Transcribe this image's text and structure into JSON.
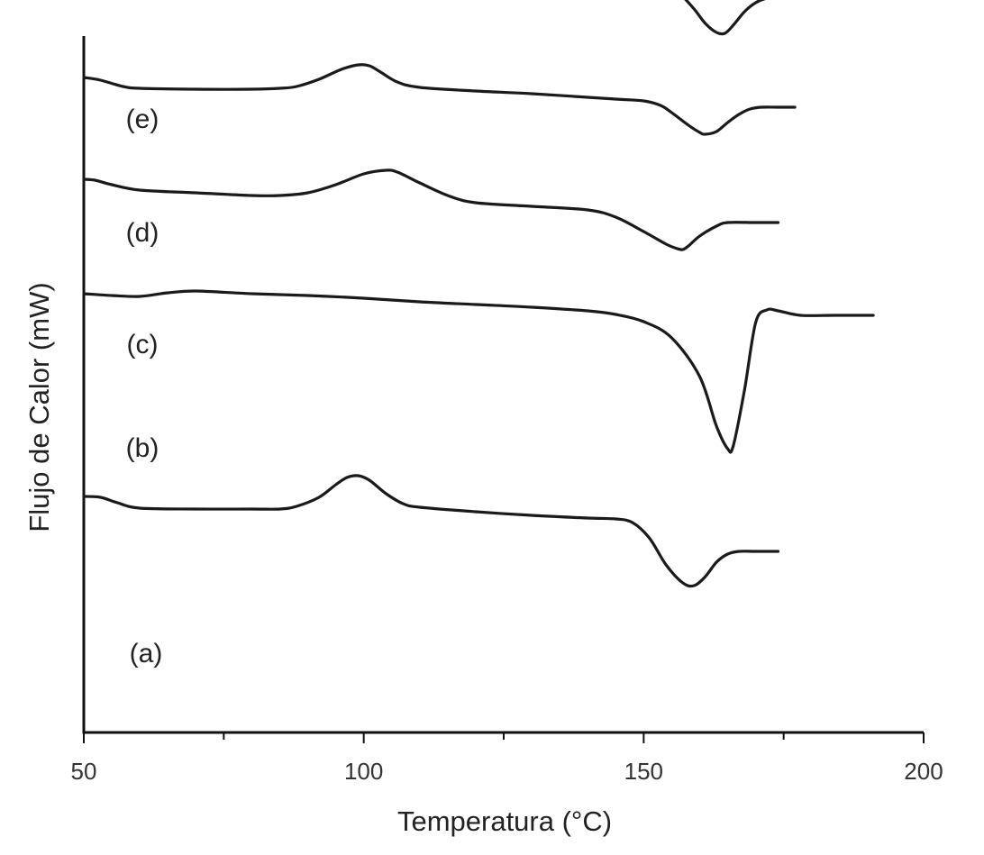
{
  "chart_data": {
    "type": "line",
    "title": "",
    "xlabel": "Temperatura (°C)",
    "ylabel": "Flujo de Calor (mW)",
    "xlim": [
      50,
      200
    ],
    "x_ticks": [
      "50",
      "100",
      "150",
      "200"
    ],
    "y_ticks_shown": false,
    "grid": false,
    "note": "",
    "series": [
      {
        "name": "(e)",
        "points": [
          [
            50,
            8.49
          ],
          [
            52,
            8.5
          ],
          [
            55,
            8.46
          ],
          [
            57,
            8.42
          ],
          [
            60,
            8.4
          ],
          [
            70,
            8.4
          ],
          [
            80,
            8.4
          ],
          [
            87,
            8.4
          ],
          [
            90,
            8.42
          ],
          [
            94,
            8.52
          ],
          [
            97,
            8.61
          ],
          [
            99,
            8.65
          ],
          [
            101,
            8.65
          ],
          [
            103,
            8.6
          ],
          [
            106,
            8.5
          ],
          [
            110,
            8.42
          ],
          [
            115,
            8.39
          ],
          [
            130,
            8.35
          ],
          [
            145,
            8.31
          ],
          [
            150,
            8.31
          ],
          [
            152,
            8.33
          ],
          [
            154,
            8.31
          ],
          [
            156,
            8.23
          ],
          [
            159,
            8.03
          ],
          [
            161,
            7.87
          ],
          [
            163,
            7.77
          ],
          [
            164.5,
            7.76
          ],
          [
            166,
            7.85
          ],
          [
            168,
            8.0
          ],
          [
            170,
            8.1
          ],
          [
            172,
            8.15
          ],
          [
            174,
            8.16
          ],
          [
            177,
            8.16
          ]
        ]
      },
      {
        "name": "(d)",
        "points": [
          [
            50,
            7.27
          ],
          [
            53,
            7.24
          ],
          [
            57,
            7.17
          ],
          [
            60,
            7.15
          ],
          [
            70,
            7.14
          ],
          [
            80,
            7.14
          ],
          [
            85,
            7.15
          ],
          [
            88,
            7.17
          ],
          [
            92,
            7.25
          ],
          [
            96,
            7.36
          ],
          [
            99,
            7.41
          ],
          [
            101,
            7.4
          ],
          [
            103,
            7.33
          ],
          [
            106,
            7.22
          ],
          [
            110,
            7.16
          ],
          [
            120,
            7.12
          ],
          [
            130,
            7.09
          ],
          [
            145,
            7.03
          ],
          [
            150,
            7.01
          ],
          [
            153,
            6.96
          ],
          [
            155,
            6.88
          ],
          [
            158,
            6.74
          ],
          [
            160,
            6.66
          ],
          [
            161,
            6.64
          ],
          [
            163,
            6.67
          ],
          [
            165,
            6.77
          ],
          [
            167,
            6.86
          ],
          [
            169,
            6.92
          ],
          [
            171,
            6.94
          ],
          [
            174,
            6.94
          ],
          [
            177,
            6.94
          ]
        ]
      },
      {
        "name": "(c)",
        "points": [
          [
            50,
            6.14
          ],
          [
            52,
            6.13
          ],
          [
            55,
            6.08
          ],
          [
            60,
            6.02
          ],
          [
            70,
            5.99
          ],
          [
            80,
            5.96
          ],
          [
            85,
            5.96
          ],
          [
            90,
            5.99
          ],
          [
            95,
            6.08
          ],
          [
            100,
            6.2
          ],
          [
            104,
            6.24
          ],
          [
            106,
            6.22
          ],
          [
            110,
            6.1
          ],
          [
            115,
            5.96
          ],
          [
            120,
            5.88
          ],
          [
            130,
            5.84
          ],
          [
            140,
            5.8
          ],
          [
            145,
            5.72
          ],
          [
            150,
            5.56
          ],
          [
            154,
            5.42
          ],
          [
            156,
            5.37
          ],
          [
            157,
            5.36
          ],
          [
            158,
            5.4
          ],
          [
            160,
            5.51
          ],
          [
            163,
            5.62
          ],
          [
            165,
            5.66
          ],
          [
            170,
            5.66
          ],
          [
            174,
            5.66
          ]
        ]
      },
      {
        "name": "(b)",
        "points": [
          [
            50,
            4.87
          ],
          [
            55,
            4.85
          ],
          [
            60,
            4.84
          ],
          [
            65,
            4.88
          ],
          [
            70,
            4.9
          ],
          [
            80,
            4.87
          ],
          [
            90,
            4.85
          ],
          [
            100,
            4.82
          ],
          [
            110,
            4.78
          ],
          [
            120,
            4.75
          ],
          [
            130,
            4.72
          ],
          [
            140,
            4.68
          ],
          [
            145,
            4.64
          ],
          [
            150,
            4.56
          ],
          [
            155,
            4.38
          ],
          [
            160,
            3.95
          ],
          [
            163,
            3.4
          ],
          [
            165,
            3.15
          ],
          [
            166,
            3.18
          ],
          [
            168,
            3.8
          ],
          [
            170,
            4.55
          ],
          [
            172,
            4.69
          ],
          [
            174,
            4.68
          ],
          [
            178,
            4.63
          ],
          [
            184,
            4.63
          ],
          [
            191,
            4.63
          ]
        ]
      },
      {
        "name": "(a)",
        "points": [
          [
            50,
            2.62
          ],
          [
            53,
            2.61
          ],
          [
            56,
            2.55
          ],
          [
            60,
            2.49
          ],
          [
            70,
            2.48
          ],
          [
            80,
            2.48
          ],
          [
            85,
            2.48
          ],
          [
            88,
            2.51
          ],
          [
            92,
            2.61
          ],
          [
            95,
            2.75
          ],
          [
            97,
            2.83
          ],
          [
            99,
            2.85
          ],
          [
            101,
            2.8
          ],
          [
            104,
            2.65
          ],
          [
            107,
            2.54
          ],
          [
            110,
            2.5
          ],
          [
            120,
            2.45
          ],
          [
            130,
            2.41
          ],
          [
            140,
            2.38
          ],
          [
            145,
            2.37
          ],
          [
            148,
            2.33
          ],
          [
            151,
            2.16
          ],
          [
            154,
            1.86
          ],
          [
            157,
            1.66
          ],
          [
            159,
            1.63
          ],
          [
            161,
            1.73
          ],
          [
            163,
            1.89
          ],
          [
            165,
            1.98
          ],
          [
            167,
            2.01
          ],
          [
            170,
            2.01
          ],
          [
            174,
            2.01
          ]
        ]
      }
    ]
  }
}
